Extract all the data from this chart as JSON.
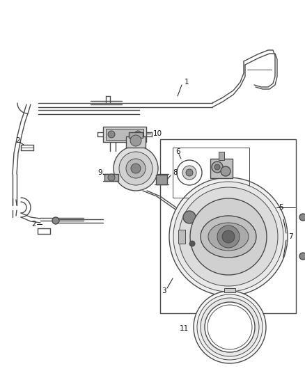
{
  "bg_color": "#ffffff",
  "line_color": "#4a4a4a",
  "label_color": "#111111",
  "fig_width": 4.38,
  "fig_height": 5.33,
  "dpi": 100,
  "layout": {
    "xlim": [
      0,
      438
    ],
    "ylim": [
      0,
      533
    ]
  }
}
